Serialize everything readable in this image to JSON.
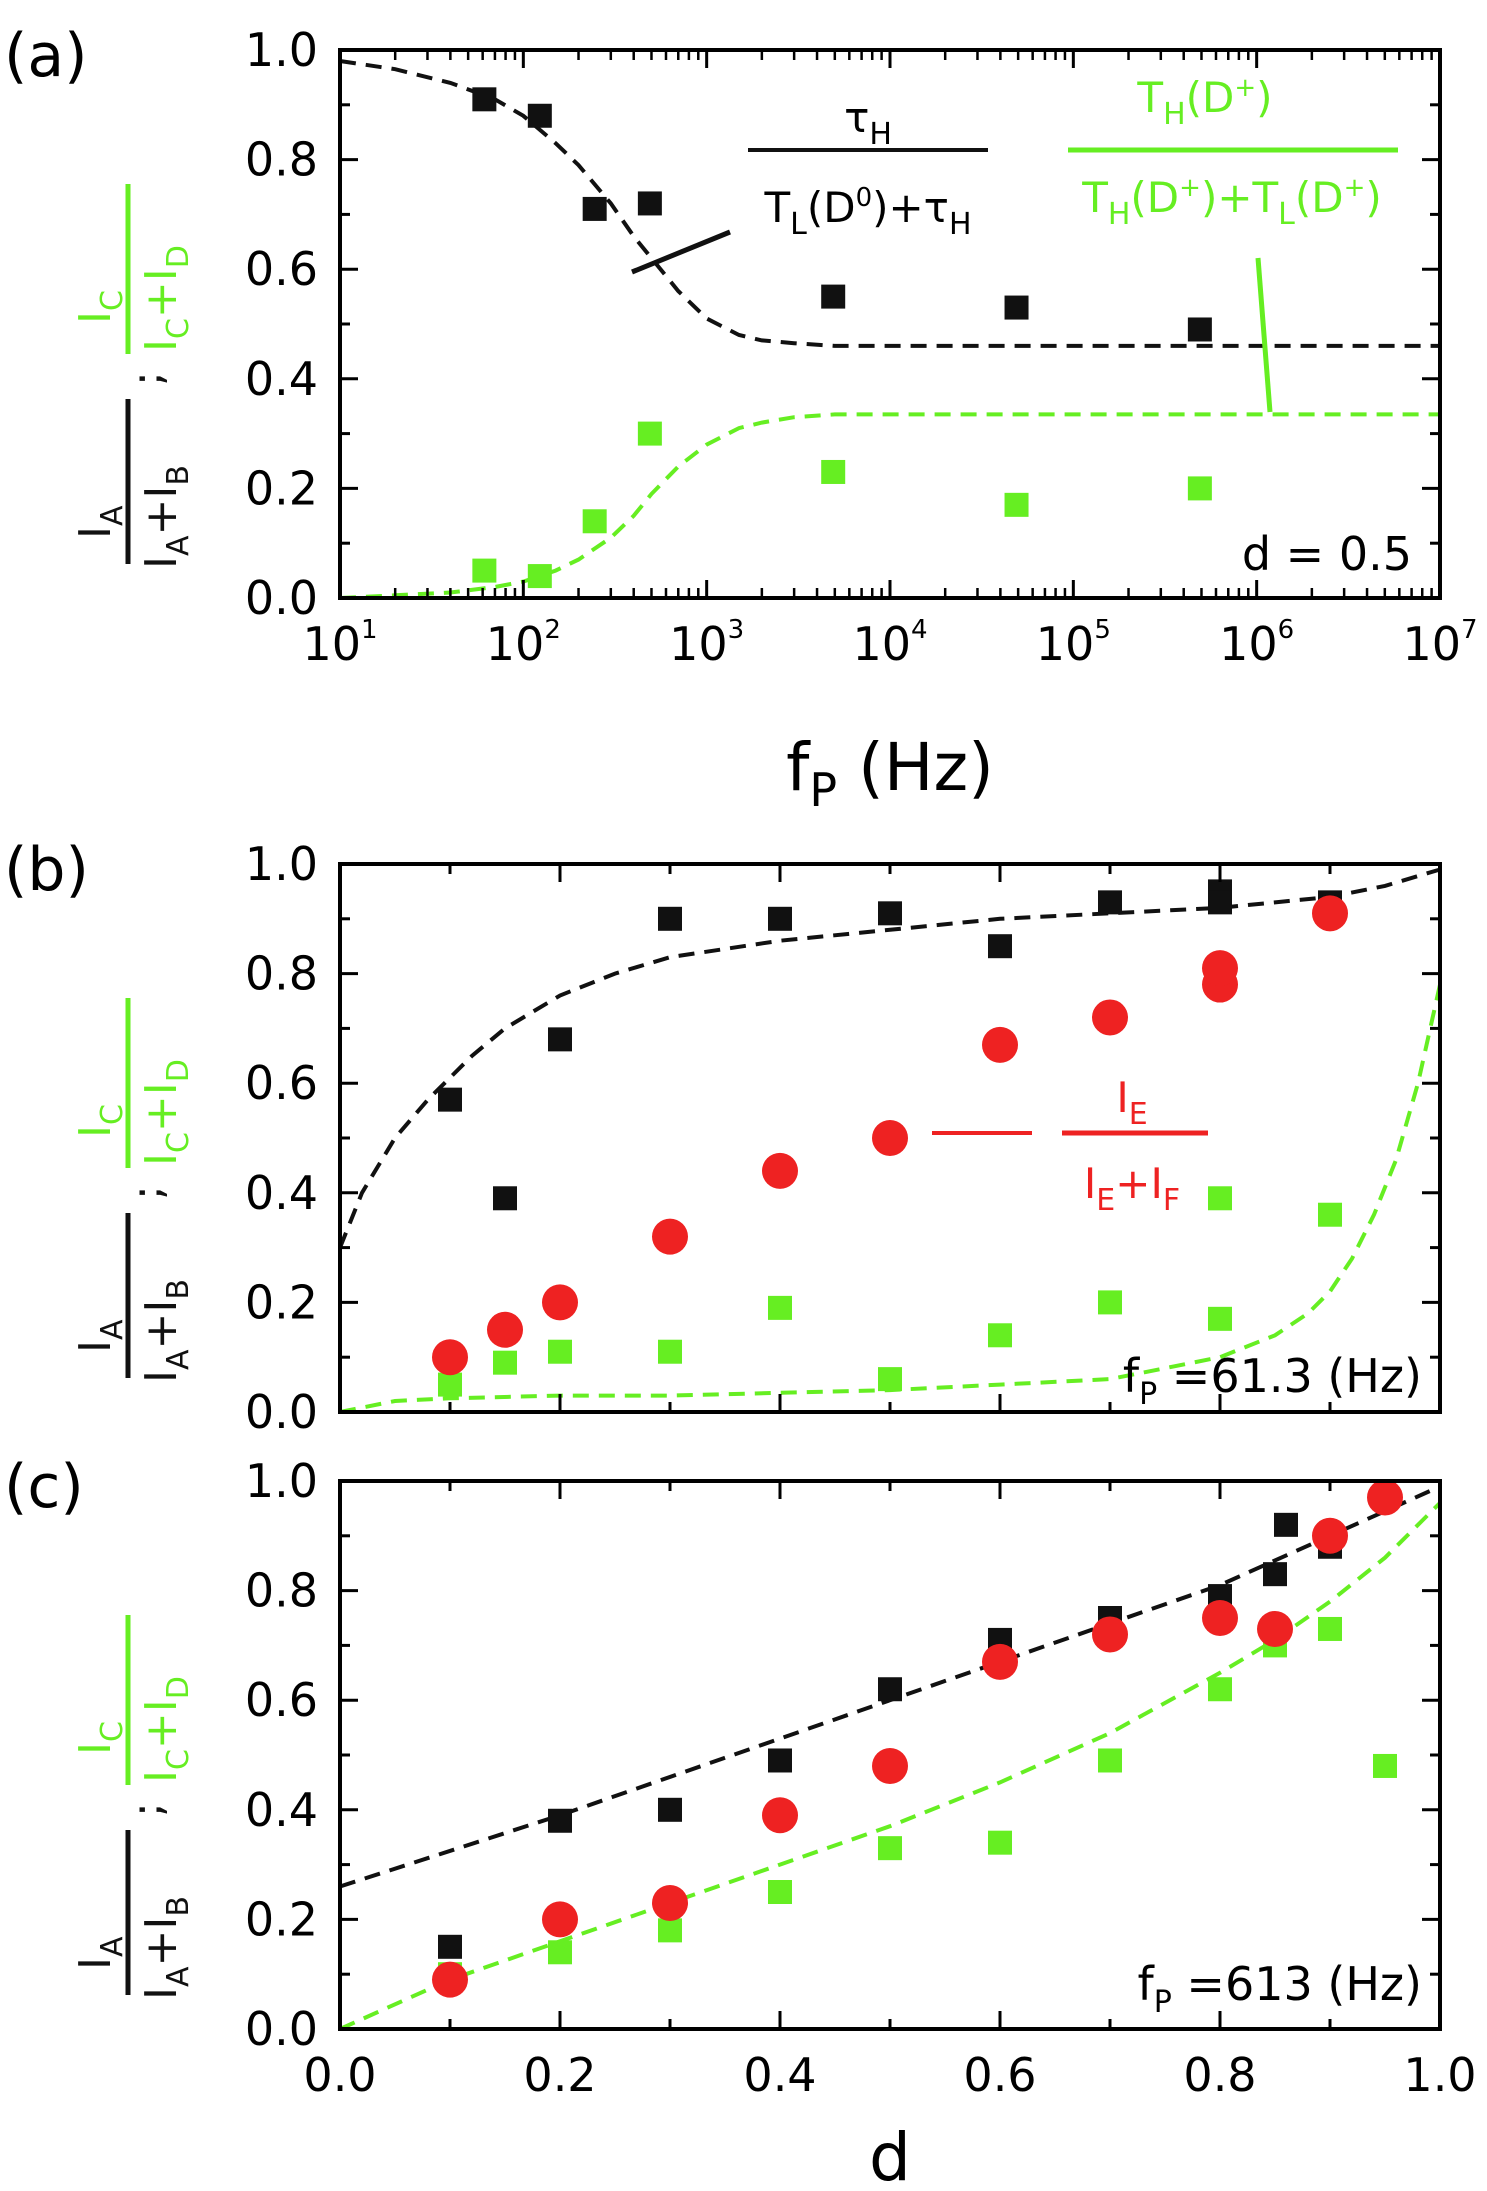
{
  "colors": {
    "black": "#111111",
    "green": "#66ee22",
    "red": "#ee2222"
  },
  "chart_data": [
    {
      "panel_label": "(a)",
      "type": "scatter",
      "x_scale": "log",
      "xlim": [
        10,
        10000000
      ],
      "ylim": [
        0,
        1
      ],
      "x_tick_exponents": [
        "1",
        "2",
        "3",
        "4",
        "5",
        "6",
        "7"
      ],
      "y_ticks": [
        "0.0",
        "0.2",
        "0.4",
        "0.6",
        "0.8",
        "1.0"
      ],
      "xlabel": {
        "main": "f",
        "sub": "P",
        "rest": " (Hz)"
      },
      "ylabel": {
        "black_num": "I",
        "black_num_sub": "A",
        "black_den": "I",
        "black_den_sub1": "A",
        "black_den_plus": "+I",
        "black_den_sub2": "B",
        "sep": ";",
        "green_num": "I",
        "green_num_sub": "C",
        "green_den": "I",
        "green_den_sub1": "C",
        "green_den_plus": "+I",
        "green_den_sub2": "D"
      },
      "annotation": "d = 0.5",
      "series": [
        {
          "name": "I_A/(I_A+I_B)",
          "marker": "square",
          "color": "black",
          "x": [
            61.3,
            123,
            245,
            490,
            4900,
            49000,
            490000
          ],
          "y": [
            0.91,
            0.88,
            0.71,
            0.72,
            0.55,
            0.53,
            0.49
          ]
        },
        {
          "name": "I_C/(I_C+I_D)",
          "marker": "square",
          "color": "green",
          "x": [
            61.3,
            123,
            245,
            490,
            4900,
            49000,
            490000
          ],
          "y": [
            0.05,
            0.04,
            0.14,
            0.3,
            0.23,
            0.17,
            0.2
          ]
        }
      ],
      "curves": [
        {
          "name": "model black",
          "color": "black",
          "style": "dashed",
          "x": [
            10,
            20,
            40,
            70,
            100,
            150,
            200,
            300,
            400,
            500,
            700,
            1000,
            1500,
            2000,
            3000,
            5000,
            10000,
            100000,
            1000000,
            10000000
          ],
          "y": [
            0.98,
            0.965,
            0.94,
            0.91,
            0.88,
            0.83,
            0.79,
            0.72,
            0.66,
            0.62,
            0.56,
            0.51,
            0.48,
            0.47,
            0.465,
            0.46,
            0.46,
            0.46,
            0.46,
            0.46
          ]
        },
        {
          "name": "model green",
          "color": "green",
          "style": "dashed",
          "x": [
            10,
            20,
            40,
            70,
            100,
            150,
            200,
            300,
            400,
            500,
            700,
            1000,
            1500,
            2000,
            3000,
            5000,
            10000,
            100000,
            1000000,
            10000000
          ],
          "y": [
            0.0,
            0.005,
            0.01,
            0.02,
            0.03,
            0.05,
            0.07,
            0.11,
            0.15,
            0.19,
            0.24,
            0.28,
            0.31,
            0.32,
            0.33,
            0.335,
            0.335,
            0.335,
            0.335,
            0.335
          ]
        }
      ],
      "formula_black": {
        "num": "τ",
        "num_sub": "H",
        "den_a": "T",
        "den_a_sub": "L",
        "den_b": "(D",
        "den_b_sup": "0",
        "den_c": ")+τ",
        "den_c_sub": "H"
      },
      "formula_green": {
        "num": "T",
        "num_sub": "H",
        "num_b": "(D",
        "num_sup": "+",
        "num_c": ")",
        "den_a": "T",
        "den_a_sub": "H",
        "den_b": "(D",
        "den_b_sup": "+",
        "den_c": ")+T",
        "den_c_sub": "L",
        "den_d": "(D",
        "den_d_sup": "+",
        "den_e": ")"
      }
    },
    {
      "panel_label": "(b)",
      "type": "scatter",
      "xlim": [
        0,
        1
      ],
      "ylim": [
        0,
        1
      ],
      "y_ticks": [
        "0.0",
        "0.2",
        "0.4",
        "0.6",
        "0.8",
        "1.0"
      ],
      "ylabel": {
        "black_num": "I",
        "black_num_sub": "A",
        "black_den": "I",
        "black_den_sub1": "A",
        "black_den_plus": "+I",
        "black_den_sub2": "B",
        "sep": ";",
        "green_num": "I",
        "green_num_sub": "C",
        "green_den": "I",
        "green_den_sub1": "C",
        "green_den_plus": "+I",
        "green_den_sub2": "D"
      },
      "annotation": {
        "pre": "f",
        "sub": "P",
        "post": " =61.3 (Hz)"
      },
      "series": [
        {
          "name": "I_A/(I_A+I_B)",
          "marker": "square",
          "color": "black",
          "x": [
            0.1,
            0.15,
            0.2,
            0.3,
            0.4,
            0.5,
            0.6,
            0.7,
            0.8,
            0.8,
            0.9
          ],
          "y": [
            0.57,
            0.39,
            0.68,
            0.9,
            0.9,
            0.91,
            0.85,
            0.93,
            0.95,
            0.93,
            0.93
          ]
        },
        {
          "name": "I_C/(I_C+I_D)",
          "marker": "square",
          "color": "green",
          "x": [
            0.1,
            0.15,
            0.2,
            0.3,
            0.4,
            0.5,
            0.6,
            0.7,
            0.8,
            0.8,
            0.9
          ],
          "y": [
            0.05,
            0.09,
            0.11,
            0.11,
            0.19,
            0.06,
            0.14,
            0.2,
            0.39,
            0.17,
            0.36
          ]
        },
        {
          "name": "I_E/(I_E+I_F)",
          "marker": "circle",
          "color": "red",
          "x": [
            0.1,
            0.15,
            0.2,
            0.3,
            0.4,
            0.5,
            0.6,
            0.7,
            0.8,
            0.8,
            0.9
          ],
          "y": [
            0.1,
            0.15,
            0.2,
            0.32,
            0.44,
            0.5,
            0.67,
            0.72,
            0.78,
            0.81,
            0.91
          ]
        }
      ],
      "curves": [
        {
          "name": "model black",
          "color": "black",
          "style": "dashed",
          "x": [
            0.0,
            0.02,
            0.05,
            0.08,
            0.1,
            0.12,
            0.15,
            0.2,
            0.25,
            0.3,
            0.4,
            0.5,
            0.6,
            0.7,
            0.8,
            0.9,
            0.95,
            1.0
          ],
          "y": [
            0.3,
            0.4,
            0.5,
            0.57,
            0.61,
            0.65,
            0.7,
            0.76,
            0.8,
            0.83,
            0.86,
            0.88,
            0.9,
            0.91,
            0.92,
            0.94,
            0.96,
            0.99
          ]
        },
        {
          "name": "model green",
          "color": "green",
          "style": "dashed",
          "x": [
            0.0,
            0.05,
            0.1,
            0.2,
            0.3,
            0.4,
            0.5,
            0.6,
            0.7,
            0.75,
            0.8,
            0.85,
            0.88,
            0.9,
            0.92,
            0.94,
            0.96,
            0.98,
            1.0
          ],
          "y": [
            0.0,
            0.02,
            0.025,
            0.03,
            0.03,
            0.035,
            0.04,
            0.05,
            0.06,
            0.08,
            0.1,
            0.14,
            0.18,
            0.22,
            0.28,
            0.36,
            0.46,
            0.6,
            0.78
          ]
        }
      ],
      "formula_red": {
        "num": "I",
        "num_sub": "E",
        "den_a": "I",
        "den_a_sub": "E",
        "den_b": "+I",
        "den_b_sub": "F"
      }
    },
    {
      "panel_label": "(c)",
      "type": "scatter",
      "xlim": [
        0,
        1
      ],
      "ylim": [
        0,
        1
      ],
      "x_ticks": [
        "0.0",
        "0.2",
        "0.4",
        "0.6",
        "0.8",
        "1.0"
      ],
      "y_ticks": [
        "0.0",
        "0.2",
        "0.4",
        "0.6",
        "0.8",
        "1.0"
      ],
      "xlabel": "d",
      "ylabel": {
        "black_num": "I",
        "black_num_sub": "A",
        "black_den": "I",
        "black_den_sub1": "A",
        "black_den_plus": "+I",
        "black_den_sub2": "B",
        "sep": ";",
        "green_num": "I",
        "green_num_sub": "C",
        "green_den": "I",
        "green_den_sub1": "C",
        "green_den_plus": "+I",
        "green_den_sub2": "D"
      },
      "annotation": {
        "pre": "f",
        "sub": "P",
        "post": " =613 (Hz)"
      },
      "series": [
        {
          "name": "I_A/(I_A+I_B)",
          "marker": "square",
          "color": "black",
          "x": [
            0.1,
            0.2,
            0.3,
            0.4,
            0.5,
            0.6,
            0.7,
            0.8,
            0.85,
            0.86,
            0.9,
            0.95
          ],
          "y": [
            0.15,
            0.38,
            0.4,
            0.49,
            0.62,
            0.71,
            0.75,
            0.79,
            0.83,
            0.92,
            0.88,
            0.97
          ]
        },
        {
          "name": "I_C/(I_C+I_D)",
          "marker": "square",
          "color": "green",
          "x": [
            0.1,
            0.2,
            0.3,
            0.4,
            0.5,
            0.6,
            0.7,
            0.8,
            0.85,
            0.9,
            0.95
          ],
          "y": [
            0.1,
            0.14,
            0.18,
            0.25,
            0.33,
            0.34,
            0.49,
            0.62,
            0.7,
            0.73,
            0.48
          ]
        },
        {
          "name": "I_E/(I_E+I_F)",
          "marker": "circle",
          "color": "red",
          "x": [
            0.1,
            0.2,
            0.3,
            0.4,
            0.5,
            0.6,
            0.7,
            0.8,
            0.85,
            0.9,
            0.95
          ],
          "y": [
            0.09,
            0.2,
            0.23,
            0.39,
            0.48,
            0.67,
            0.72,
            0.75,
            0.73,
            0.9,
            0.97
          ]
        }
      ],
      "curves": [
        {
          "name": "model black",
          "color": "black",
          "style": "dashed",
          "x": [
            0.0,
            0.2,
            0.4,
            0.6,
            0.8,
            0.9,
            1.0
          ],
          "y": [
            0.26,
            0.39,
            0.53,
            0.67,
            0.81,
            0.9,
            0.99
          ]
        },
        {
          "name": "model green",
          "color": "green",
          "style": "dashed",
          "x": [
            0.0,
            0.1,
            0.2,
            0.3,
            0.4,
            0.5,
            0.6,
            0.7,
            0.8,
            0.85,
            0.9,
            0.95,
            1.0
          ],
          "y": [
            0.0,
            0.09,
            0.16,
            0.23,
            0.3,
            0.37,
            0.45,
            0.54,
            0.65,
            0.71,
            0.78,
            0.86,
            0.96
          ]
        }
      ]
    }
  ]
}
